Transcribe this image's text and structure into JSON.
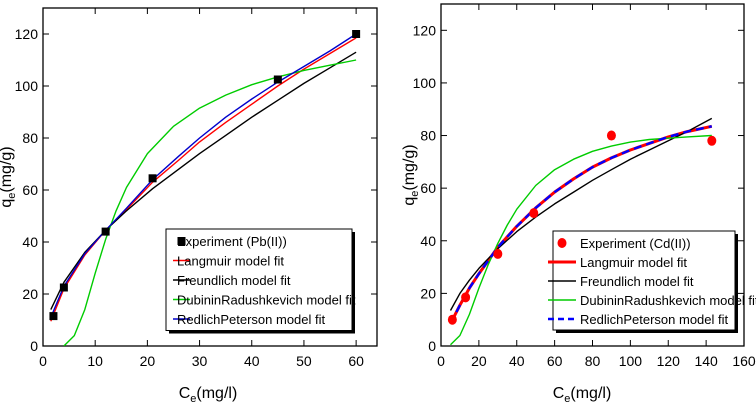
{
  "chart_data": [
    {
      "type": "scatter",
      "panel": "left",
      "xlabel_main": "C",
      "xlabel_sub": "e",
      "xlabel_unit": "(mg/l)",
      "ylabel_main": "q",
      "ylabel_sub": "e",
      "ylabel_unit": "(mg/g)",
      "xlim": [
        0,
        64
      ],
      "ylim": [
        0,
        130
      ],
      "xticks": [
        0,
        10,
        20,
        30,
        40,
        50,
        60
      ],
      "yticks": [
        0,
        20,
        40,
        60,
        80,
        100,
        120
      ],
      "legend_position": "bottom-right",
      "experiment": {
        "name": "Experiment (Pb(II))",
        "marker": "square",
        "color": "#000000",
        "x": [
          2,
          4,
          12,
          21,
          45,
          60
        ],
        "y": [
          11.5,
          22.5,
          44,
          64.5,
          102.5,
          120
        ]
      },
      "series": [
        {
          "name": "Langmuir model fit",
          "color": "#ff0000",
          "dashed": false,
          "x": [
            1.5,
            4,
            8,
            12,
            16,
            21,
            26,
            30,
            35,
            40,
            45,
            50,
            55,
            60
          ],
          "y": [
            9.5,
            22,
            35,
            44.5,
            52.5,
            63,
            71.5,
            78.5,
            86,
            93,
            100,
            106.5,
            112.5,
            118.5
          ]
        },
        {
          "name": "Freundlich model fit",
          "color": "#000000",
          "dashed": false,
          "x": [
            1.5,
            4,
            8,
            12,
            16,
            21,
            26,
            30,
            35,
            40,
            45,
            50,
            55,
            60
          ],
          "y": [
            14,
            24.5,
            36,
            44.5,
            52,
            60.5,
            68,
            74,
            81,
            88,
            94.5,
            101,
            107,
            113
          ]
        },
        {
          "name": "DubininRadushkevich model fit",
          "color": "#00cc00",
          "dashed": false,
          "x": [
            4,
            6,
            8,
            10,
            12,
            14,
            16,
            20,
            25,
            30,
            35,
            40,
            45,
            50,
            55,
            60
          ],
          "y": [
            0,
            4,
            14,
            28,
            41,
            52,
            61,
            74,
            84.5,
            91.5,
            96.5,
            100.5,
            103.5,
            106,
            108,
            110
          ]
        },
        {
          "name": "RedlichPeterson model fit",
          "color": "#0000cc",
          "dashed": false,
          "x": [
            1.5,
            4,
            8,
            12,
            16,
            21,
            26,
            30,
            35,
            40,
            45,
            50,
            55,
            60
          ],
          "y": [
            11,
            23,
            35.5,
            44.5,
            53,
            64,
            73,
            80,
            88,
            95,
            101.5,
            107.5,
            113.5,
            120
          ]
        }
      ]
    },
    {
      "type": "scatter",
      "panel": "right",
      "xlabel_main": "C",
      "xlabel_sub": "e",
      "xlabel_unit": "(mg/l)",
      "ylabel_main": "q",
      "ylabel_sub": "e",
      "ylabel_unit": "(mg/g)",
      "xlim": [
        0,
        160
      ],
      "ylim": [
        0,
        130
      ],
      "xticks": [
        0,
        20,
        40,
        60,
        80,
        100,
        120,
        140,
        160
      ],
      "yticks": [
        0,
        20,
        40,
        60,
        80,
        100,
        120
      ],
      "legend_position": "bottom-right",
      "experiment": {
        "name": "Experiment (Cd(II))",
        "marker": "circle",
        "color": "#ff0000",
        "x": [
          6,
          13,
          30,
          49,
          90,
          143
        ],
        "y": [
          10,
          18.5,
          35,
          50.5,
          80,
          78
        ]
      },
      "series": [
        {
          "name": "Langmuir model fit",
          "color": "#ff0000",
          "dashed": false,
          "x": [
            5,
            10,
            15,
            20,
            30,
            40,
            50,
            60,
            70,
            80,
            90,
            100,
            110,
            120,
            130,
            143
          ],
          "y": [
            8.5,
            15.5,
            22,
            27.5,
            37.5,
            45.5,
            52.5,
            58.5,
            63.5,
            68,
            71.5,
            74.5,
            77,
            79.5,
            81.5,
            83.5
          ]
        },
        {
          "name": "Freundlich model fit",
          "color": "#000000",
          "dashed": false,
          "x": [
            5,
            10,
            15,
            20,
            30,
            40,
            50,
            60,
            70,
            80,
            90,
            100,
            110,
            120,
            130,
            143
          ],
          "y": [
            13.5,
            20,
            25,
            29.5,
            37,
            43.5,
            49,
            54,
            58.5,
            63,
            67,
            71,
            74.5,
            78,
            81.5,
            86.5
          ]
        },
        {
          "name": "DubininRadushkevich model fit",
          "color": "#00cc00",
          "dashed": false,
          "x": [
            5,
            10,
            15,
            20,
            25,
            30,
            35,
            40,
            50,
            60,
            70,
            80,
            90,
            100,
            110,
            120,
            130,
            143
          ],
          "y": [
            0.5,
            4,
            12,
            22,
            31,
            39,
            46,
            52,
            61,
            67,
            71,
            74,
            76,
            77.5,
            78.5,
            79,
            79.5,
            80
          ]
        },
        {
          "name": "RedlichPeterson model fit",
          "color": "#0000ff",
          "dashed": true,
          "x": [
            5,
            10,
            15,
            20,
            30,
            40,
            50,
            60,
            70,
            80,
            90,
            100,
            110,
            120,
            130,
            143
          ],
          "y": [
            8.5,
            15.5,
            22,
            27.5,
            37.5,
            45.5,
            52.5,
            58.5,
            63.5,
            68,
            71.5,
            74.5,
            77,
            79.5,
            81.5,
            83.5
          ]
        }
      ]
    }
  ]
}
